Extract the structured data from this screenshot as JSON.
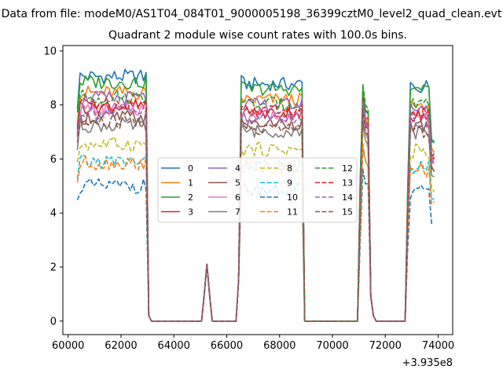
{
  "figure": {
    "suptitle": "Data from file: modeM0/AS1T04_084T01_9000005198_36399cztM0_level2_quad_clean.evt",
    "title": "Quadrant 2 module wise count rates with 100.0s bins.",
    "offset_label": "+3.935e8"
  },
  "chart_data": {
    "type": "line",
    "title": "Quadrant 2 module wise count rates with 100.0s bins.",
    "xlabel": "",
    "ylabel": "",
    "x_offset": 393500000,
    "xlim": [
      59800,
      74550
    ],
    "ylim": [
      -0.5,
      10.2
    ],
    "xticks": [
      60000,
      62000,
      64000,
      66000,
      68000,
      70000,
      72000,
      74000
    ],
    "yticks": [
      0,
      2,
      4,
      6,
      8,
      10
    ],
    "grid": false,
    "legend_position": "center",
    "x": [
      60350,
      60450,
      60550,
      60650,
      60750,
      60850,
      60950,
      61050,
      61150,
      61250,
      61350,
      61450,
      61550,
      61650,
      61750,
      61850,
      61950,
      62050,
      62150,
      62250,
      62350,
      62450,
      62550,
      62650,
      62750,
      62850,
      62950,
      63050,
      63150,
      63250,
      63350,
      63450,
      63550,
      63650,
      63750,
      63850,
      63950,
      64050,
      64150,
      64250,
      64350,
      64450,
      64550,
      64650,
      64750,
      64850,
      64950,
      65050,
      65150,
      65250,
      65350,
      65450,
      65550,
      65650,
      65750,
      65850,
      65950,
      66050,
      66150,
      66250,
      66350,
      66450,
      66550,
      66650,
      66750,
      66850,
      66950,
      67050,
      67150,
      67250,
      67350,
      67450,
      67550,
      67650,
      67750,
      67850,
      67950,
      68050,
      68150,
      68250,
      68350,
      68450,
      68550,
      68650,
      68750,
      68850,
      68950,
      69050,
      69150,
      69250,
      69350,
      69450,
      69550,
      69650,
      69750,
      69850,
      69950,
      70050,
      70150,
      70250,
      70350,
      70450,
      70550,
      70650,
      70750,
      70850,
      70950,
      71050,
      71150,
      71250,
      71350,
      71450,
      71550,
      71650,
      71750,
      71850,
      71950,
      72050,
      72150,
      72250,
      72350,
      72450,
      72550,
      72650,
      72750,
      72850,
      72950,
      73050,
      73150,
      73250,
      73350,
      73450,
      73550,
      73650,
      73750,
      73850
    ],
    "series": [
      {
        "name": "0",
        "color": "#1f77b4",
        "dash": "solid",
        "level": 9.05,
        "dip": 8.2
      },
      {
        "name": "1",
        "color": "#ff7f0e",
        "dash": "solid",
        "level": 8.45,
        "dip": 7.9
      },
      {
        "name": "2",
        "color": "#2ca02c",
        "dash": "solid",
        "level": 8.85,
        "dip": 8.4
      },
      {
        "name": "3",
        "color": "#d62728",
        "dash": "solid",
        "level": 7.95,
        "dip": 7.6
      },
      {
        "name": "4",
        "color": "#9467bd",
        "dash": "solid",
        "level": 8.25,
        "dip": 7.9
      },
      {
        "name": "5",
        "color": "#8c564b",
        "dash": "solid",
        "level": 7.55,
        "dip": 7.3
      },
      {
        "name": "6",
        "color": "#e377c2",
        "dash": "solid",
        "level": 7.85,
        "dip": 7.5
      },
      {
        "name": "7",
        "color": "#7f7f7f",
        "dash": "solid",
        "level": 7.25,
        "dip": 7.0
      },
      {
        "name": "8",
        "color": "#bcbd22",
        "dash": "dashed",
        "level": 6.55,
        "dip": 7.0
      },
      {
        "name": "9",
        "color": "#17becf",
        "dash": "dashed",
        "level": 5.9,
        "dip": 6.2
      },
      {
        "name": "10",
        "color": "#1f77b4",
        "dash": "dashed",
        "level": 5.0,
        "dip": 5.4
      },
      {
        "name": "11",
        "color": "#ff7f0e",
        "dash": "dashed",
        "level": 5.85,
        "dip": 6.3
      },
      {
        "name": "12",
        "color": "#2ca02c",
        "dash": "dashed",
        "level": 8.3,
        "dip": 8.4
      },
      {
        "name": "13",
        "color": "#d62728",
        "dash": "dashed",
        "level": 8.05,
        "dip": 8.0
      },
      {
        "name": "14",
        "color": "#9467bd",
        "dash": "dashed",
        "level": 7.75,
        "dip": 7.8
      },
      {
        "name": "15",
        "color": "#8c564b",
        "dash": "dashed",
        "level": 7.35,
        "dip": 7.6
      }
    ]
  }
}
